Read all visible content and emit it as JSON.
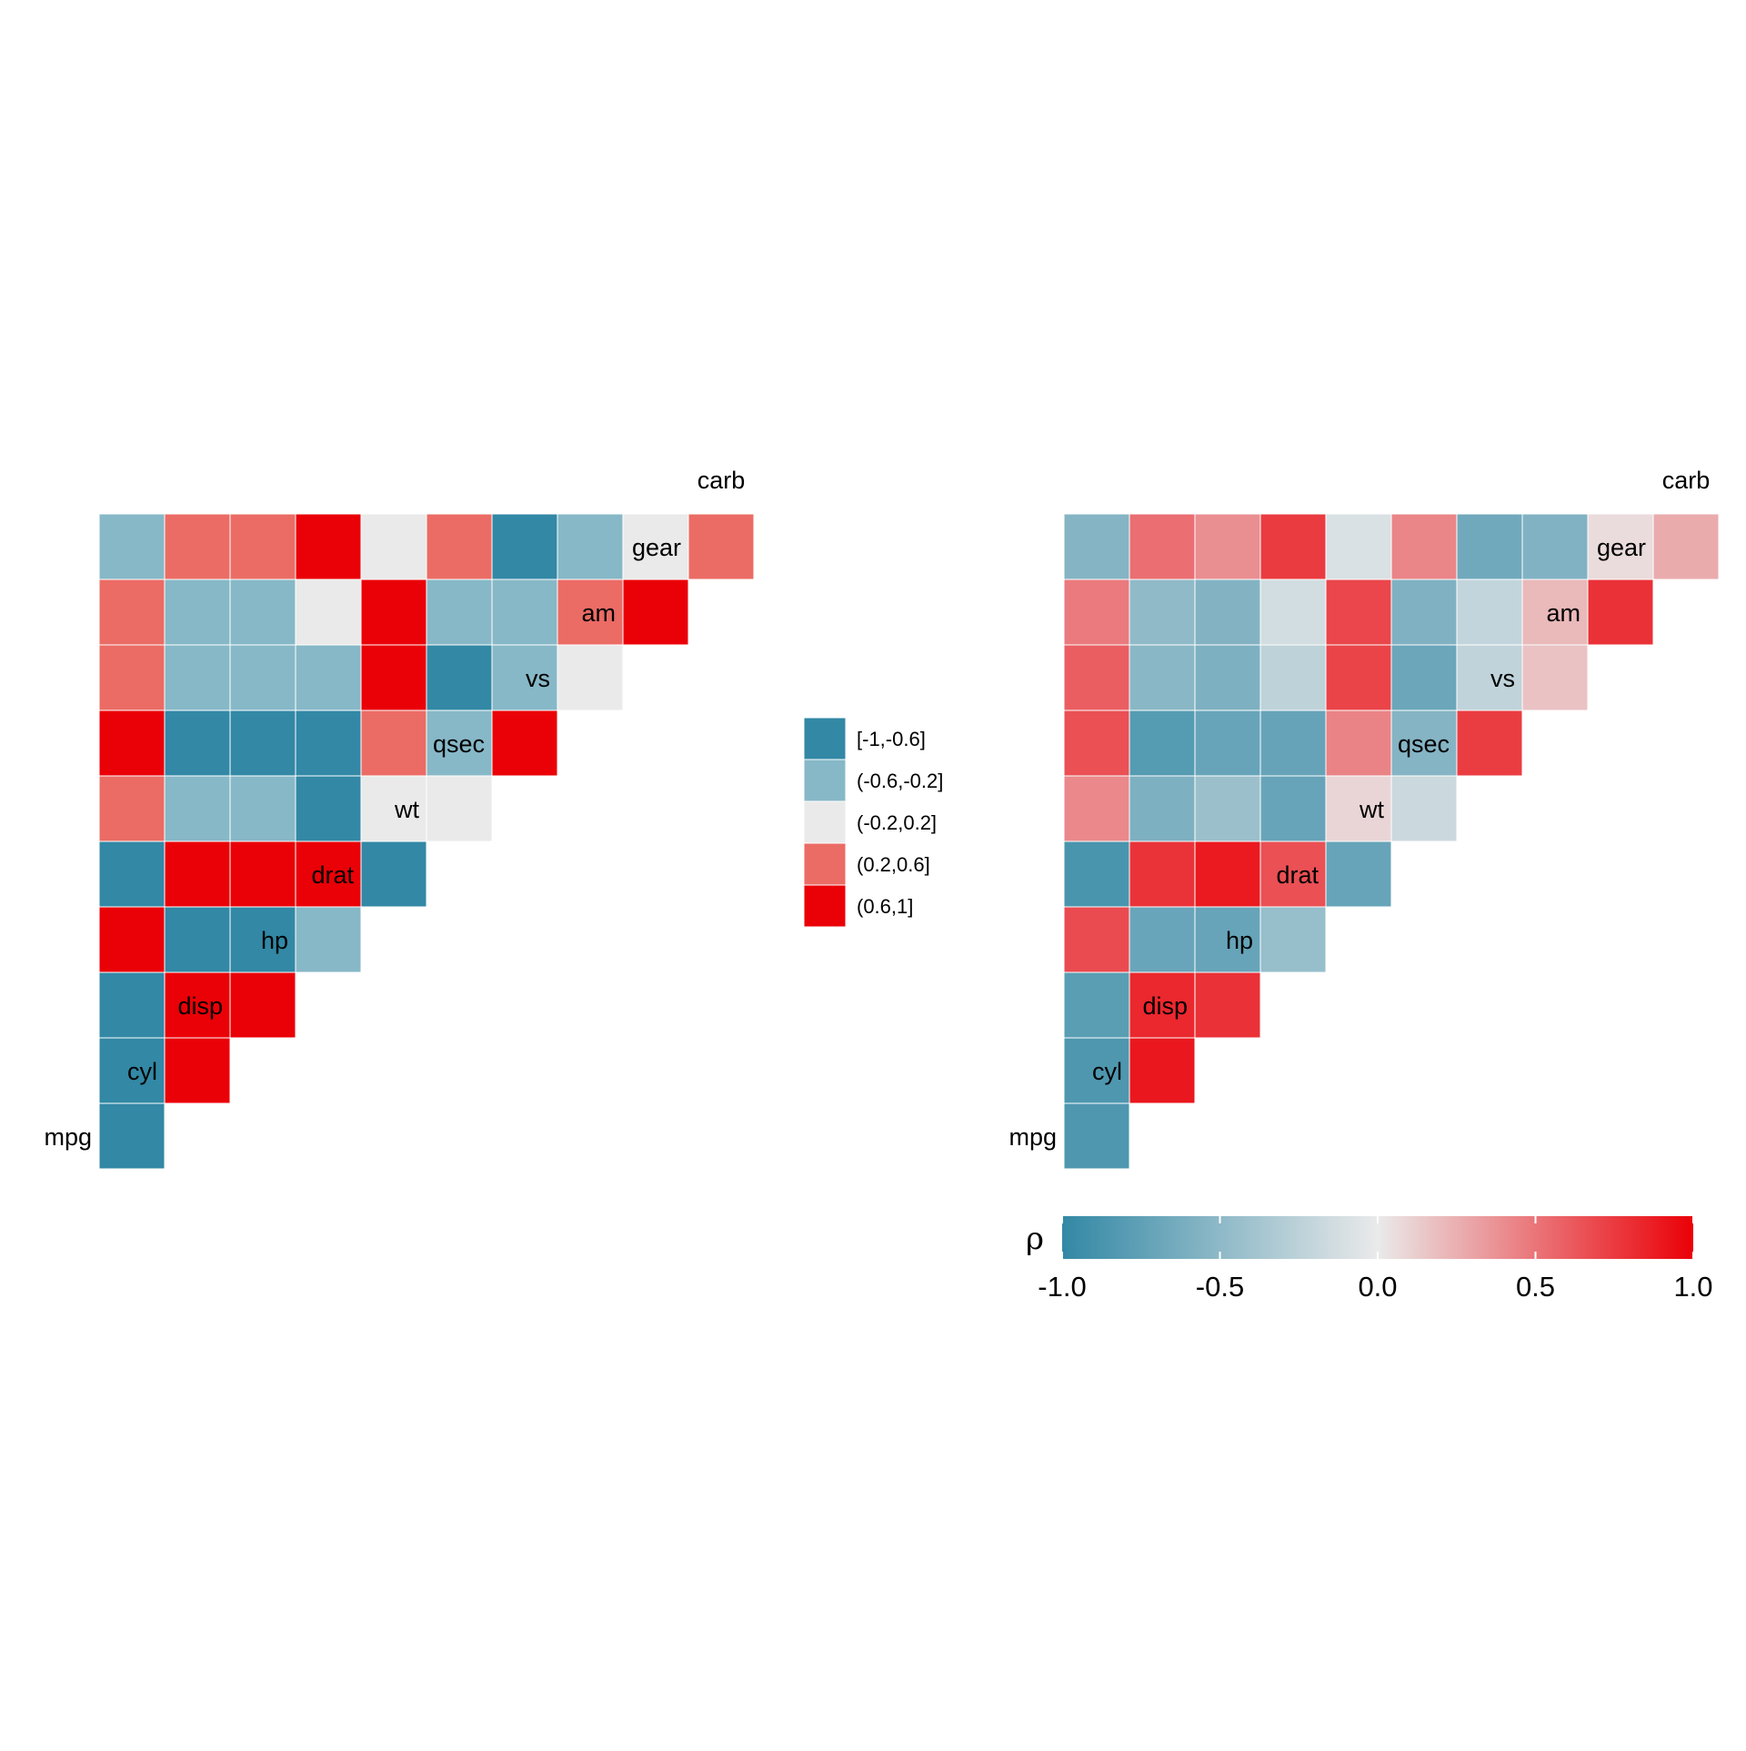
{
  "chart_data": [
    {
      "type": "heatmap",
      "variables": [
        "mpg",
        "cyl",
        "disp",
        "hp",
        "drat",
        "wt",
        "qsec",
        "vs",
        "am",
        "gear",
        "carb"
      ],
      "matrix": "lower-triangle",
      "values": [
        [
          -0.85
        ],
        [
          -0.85,
          0.9
        ],
        [
          -0.78,
          0.83,
          0.79
        ],
        [
          0.68,
          -0.7,
          -0.71,
          -0.45
        ],
        [
          -0.87,
          0.78,
          0.89,
          0.66,
          -0.71
        ],
        [
          0.42,
          -0.59,
          -0.43,
          -0.71,
          0.09,
          -0.17
        ],
        [
          0.66,
          -0.81,
          -0.71,
          -0.72,
          0.44,
          -0.55,
          0.74
        ],
        [
          0.6,
          -0.52,
          -0.59,
          -0.24,
          0.71,
          -0.69,
          -0.23,
          0.17
        ],
        [
          0.48,
          -0.49,
          -0.56,
          -0.13,
          0.7,
          -0.58,
          -0.21,
          0.21,
          0.79
        ],
        [
          -0.55,
          0.53,
          0.39,
          0.75,
          -0.09,
          0.43,
          -0.66,
          -0.57,
          0.06,
          0.27
        ]
      ],
      "legend": {
        "position": "right",
        "bins": [
          {
            "label": "[-1,-0.6]",
            "color": "#3288a5"
          },
          {
            "label": "(-0.6,-0.2]",
            "color": "#87b8c7"
          },
          {
            "label": "(-0.2,0.2]",
            "color": "#eaeaea"
          },
          {
            "label": "(0.2,0.6]",
            "color": "#eb6c65"
          },
          {
            "label": "(0.6,1]",
            "color": "#ea0007"
          }
        ]
      }
    },
    {
      "type": "heatmap",
      "variables": [
        "mpg",
        "cyl",
        "disp",
        "hp",
        "drat",
        "wt",
        "qsec",
        "vs",
        "am",
        "gear",
        "carb"
      ],
      "matrix": "lower-triangle",
      "values": [
        [
          -0.85
        ],
        [
          -0.85,
          0.9
        ],
        [
          -0.78,
          0.83,
          0.79
        ],
        [
          0.68,
          -0.7,
          -0.71,
          -0.45
        ],
        [
          -0.87,
          0.78,
          0.89,
          0.66,
          -0.71
        ],
        [
          0.42,
          -0.59,
          -0.43,
          -0.71,
          0.09,
          -0.17
        ],
        [
          0.66,
          -0.81,
          -0.71,
          -0.72,
          0.44,
          -0.55,
          0.74
        ],
        [
          0.6,
          -0.52,
          -0.59,
          -0.24,
          0.71,
          -0.69,
          -0.23,
          0.17
        ],
        [
          0.48,
          -0.49,
          -0.56,
          -0.13,
          0.7,
          -0.58,
          -0.21,
          0.21,
          0.79
        ],
        [
          -0.55,
          0.53,
          0.39,
          0.75,
          -0.09,
          0.43,
          -0.66,
          -0.57,
          0.06,
          0.27
        ]
      ],
      "colorbar": {
        "title": "ρ",
        "position": "bottom",
        "range": [
          -1,
          1
        ],
        "ticks": [
          -1.0,
          -0.5,
          0.0,
          0.5,
          1.0
        ],
        "tick_labels": [
          "-1.0",
          "-0.5",
          "0.0",
          "0.5",
          "1.0"
        ],
        "low_color": "#3288a5",
        "mid_color": "#eaeaea",
        "high_color": "#ea0007"
      }
    }
  ]
}
